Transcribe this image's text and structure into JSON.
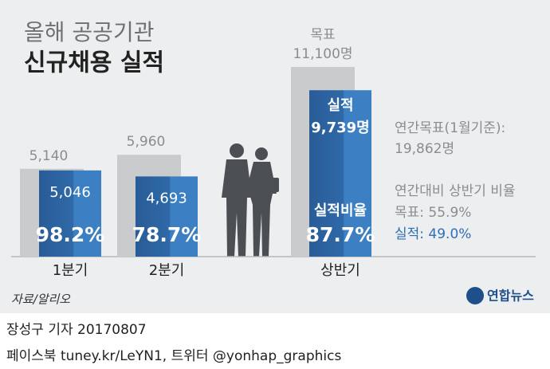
{
  "title": [
    "올해 공공기관",
    "신규채용 실적"
  ],
  "chart_data": {
    "type": "bar",
    "categories": [
      "1분기",
      "2분기",
      "상반기"
    ],
    "series": [
      {
        "name": "목표",
        "color": "#c9cbcd",
        "values": [
          5140,
          5960,
          11100
        ],
        "value_labels": [
          "5,140",
          "5,960",
          "11,100명"
        ]
      },
      {
        "name": "실적",
        "color": "#2f69a8",
        "values": [
          5046,
          4693,
          9739
        ],
        "value_labels": [
          "5,046",
          "4,693",
          "9,739명"
        ]
      },
      {
        "name": "실적비율",
        "values": [
          98.2,
          78.7,
          87.7
        ],
        "value_labels": [
          "98.2%",
          "78.7%",
          "87.7%"
        ]
      }
    ]
  },
  "notes": [
    "연간목표(1월기준):",
    "19,862명",
    "연간대비 상반기 비율",
    "목표: 55.9%",
    "실적: 49.0%"
  ],
  "source": "자료/알리오",
  "logo": "연합뉴스",
  "footer": [
    "장성구 기자 20170807",
    "페이스북 tuney.kr/LeYN1, 트위터 @yonhap_graphics"
  ]
}
